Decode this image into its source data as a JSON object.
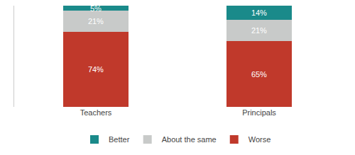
{
  "chart_data": {
    "type": "bar",
    "stacked": true,
    "categories": [
      "Teachers",
      "Principals"
    ],
    "series": [
      {
        "name": "Worse",
        "color": "#c0392b",
        "values": [
          74,
          65
        ],
        "value_labels": [
          "74%",
          "65%"
        ]
      },
      {
        "name": "About the same",
        "color": "#c8cac9",
        "values": [
          21,
          21
        ],
        "value_labels": [
          "21%",
          "21%"
        ]
      },
      {
        "name": "Better",
        "color": "#1a8a8a",
        "values": [
          5,
          14
        ],
        "value_labels": [
          "5%",
          "14%"
        ]
      }
    ],
    "ylim": [
      0,
      100
    ],
    "yticks": [],
    "data_labels": true,
    "tick_labels": "x",
    "grid": false,
    "legend": "bottom"
  }
}
